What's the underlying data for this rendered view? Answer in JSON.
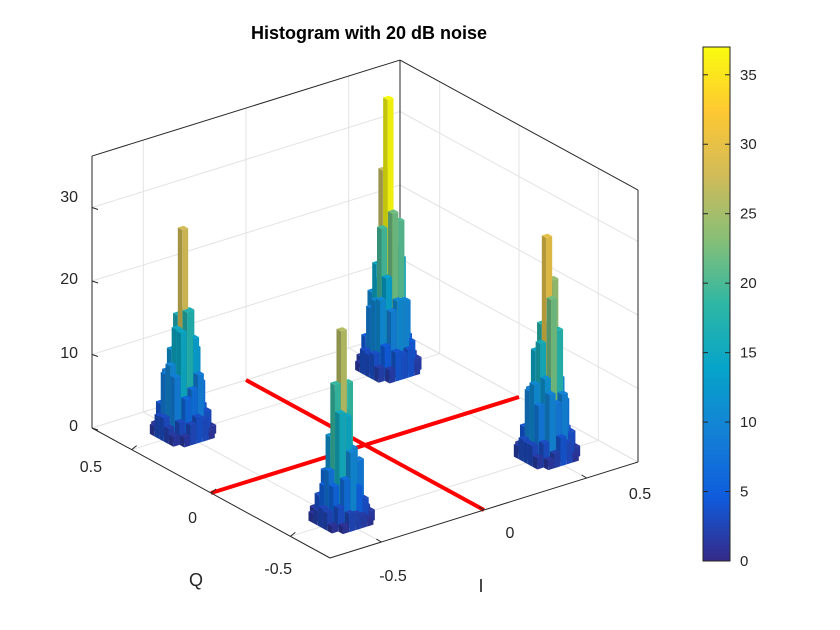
{
  "chart_data": {
    "type": "bar3d-histogram",
    "title": "Histogram with 20 dB noise",
    "xlabel": "I",
    "ylabel": "Q",
    "zlabel": "",
    "xlim": [
      -0.75,
      0.75
    ],
    "ylim": [
      -0.75,
      0.75
    ],
    "zlim": [
      0,
      37
    ],
    "x_ticks": [
      "-0.5",
      "0",
      "0.5"
    ],
    "y_ticks": [
      "-0.5",
      "0",
      "0.5"
    ],
    "z_ticks": [
      "0",
      "10",
      "20",
      "30"
    ],
    "colorbar": {
      "colormap": "parula",
      "range": [
        0,
        37
      ],
      "ticks": [
        "0",
        "5",
        "10",
        "15",
        "20",
        "25",
        "30",
        "35"
      ]
    },
    "clusters": [
      {
        "i": -0.5,
        "q": 0.5,
        "peak": 28
      },
      {
        "i": 0.5,
        "q": 0.5,
        "peak": 37
      },
      {
        "i": 0.5,
        "q": -0.5,
        "peak": 30
      },
      {
        "i": -0.5,
        "q": -0.5,
        "peak": 26
      }
    ],
    "reference_lines": {
      "color": "#ff0000",
      "i": 0,
      "q": 0
    },
    "grid": true
  }
}
